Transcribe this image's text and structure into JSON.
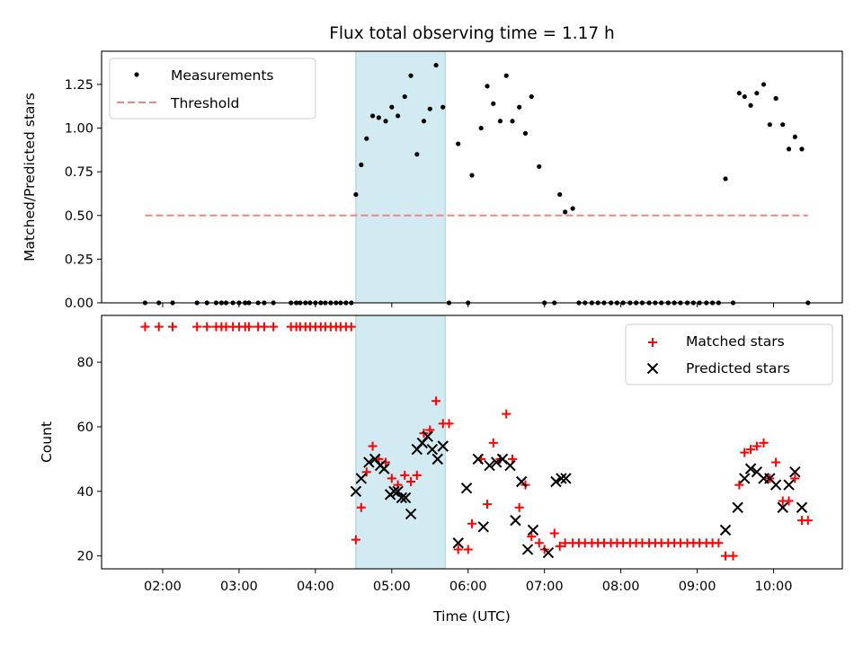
{
  "chart_data": {
    "type": "scatter",
    "title": "Flux total observing time = 1.17 h",
    "xlabel": "Time (UTC)",
    "x_tick_labels": [
      "02:00",
      "03:00",
      "04:00",
      "05:00",
      "06:00",
      "07:00",
      "08:00",
      "09:00",
      "10:00"
    ],
    "x_tick_hours": [
      2,
      3,
      4,
      5,
      6,
      7,
      8,
      9,
      10
    ],
    "xlim_hours": [
      1.2,
      10.9
    ],
    "highlight_span_hours": [
      4.53,
      5.7
    ],
    "highlight_color": "#add8e6",
    "panels": [
      {
        "ylabel": "Matched/Predicted stars",
        "ylim": [
          0,
          1.44
        ],
        "y_ticks": [
          0,
          0.25,
          0.5,
          0.75,
          1.0,
          1.25
        ],
        "y_tick_labels": [
          "0.00",
          "0.25",
          "0.50",
          "0.75",
          "1.00",
          "1.25"
        ],
        "legend_position": "top-left",
        "legend": [
          "Measurements",
          "Threshold"
        ],
        "threshold": {
          "name": "Threshold",
          "y": 0.5,
          "x_range_hours": [
            1.77,
            10.45
          ],
          "color": "#ff7f7f"
        },
        "measurements": {
          "name": "Measurements",
          "color": "#000000",
          "x": [
            1.77,
            1.95,
            2.13,
            2.45,
            2.58,
            2.7,
            2.77,
            2.83,
            2.92,
            3.0,
            3.08,
            3.13,
            3.25,
            3.33,
            3.45,
            3.68,
            3.75,
            3.8,
            3.87,
            3.93,
            4.0,
            4.07,
            4.13,
            4.2,
            4.27,
            4.33,
            4.4,
            4.47,
            4.53,
            4.6,
            4.67,
            4.75,
            4.83,
            4.92,
            5.0,
            5.08,
            5.17,
            5.25,
            5.33,
            5.42,
            5.5,
            5.58,
            5.67,
            5.75,
            5.87,
            6.0,
            6.05,
            6.17,
            6.25,
            6.33,
            6.42,
            6.5,
            6.58,
            6.67,
            6.75,
            6.83,
            6.93,
            7.0,
            7.13,
            7.2,
            7.27,
            7.37,
            7.45,
            7.53,
            7.62,
            7.7,
            7.78,
            7.87,
            7.95,
            8.03,
            8.12,
            8.2,
            8.28,
            8.37,
            8.45,
            8.53,
            8.62,
            8.7,
            8.78,
            8.87,
            8.95,
            9.03,
            9.12,
            9.2,
            9.28,
            9.37,
            9.47,
            9.55,
            9.62,
            9.7,
            9.78,
            9.87,
            9.95,
            10.03,
            10.12,
            10.2,
            10.28,
            10.37,
            10.45
          ],
          "y": [
            0,
            0,
            0,
            0,
            0,
            0,
            0,
            0,
            0,
            0,
            0,
            0,
            0,
            0,
            0,
            0,
            0,
            0,
            0,
            0,
            0,
            0,
            0,
            0,
            0,
            0,
            0,
            0,
            0.62,
            0.79,
            0.94,
            1.07,
            1.06,
            1.04,
            1.12,
            1.07,
            1.18,
            1.3,
            0.85,
            1.04,
            1.11,
            1.36,
            1.12,
            0,
            0.91,
            0,
            0.73,
            1.0,
            1.24,
            1.14,
            1.04,
            1.3,
            1.04,
            1.12,
            0.97,
            1.18,
            0.78,
            0,
            0,
            0.62,
            0.52,
            0.54,
            0,
            0,
            0,
            0,
            0,
            0,
            0,
            0,
            0,
            0,
            0,
            0,
            0,
            0,
            0,
            0,
            0,
            0,
            0,
            0,
            0,
            0,
            0,
            0.71,
            0,
            1.2,
            1.18,
            1.13,
            1.2,
            1.25,
            1.02,
            1.17,
            1.02,
            0.88,
            0.95,
            0.88,
            0
          ]
        }
      },
      {
        "ylabel": "Count",
        "ylim": [
          16,
          94.5
        ],
        "y_ticks": [
          20,
          40,
          60,
          80
        ],
        "y_tick_labels": [
          "20",
          "40",
          "60",
          "80"
        ],
        "legend_position": "top-right",
        "legend": [
          "Matched stars",
          "Predicted stars"
        ],
        "matched": {
          "name": "Matched stars",
          "color": "#ff0000",
          "x": [
            1.77,
            1.95,
            2.13,
            2.45,
            2.58,
            2.7,
            2.77,
            2.83,
            2.92,
            3.0,
            3.08,
            3.13,
            3.25,
            3.33,
            3.45,
            3.68,
            3.75,
            3.8,
            3.87,
            3.93,
            4.0,
            4.07,
            4.13,
            4.2,
            4.27,
            4.33,
            4.4,
            4.47,
            4.53,
            4.6,
            4.67,
            4.75,
            4.83,
            4.92,
            5.0,
            5.08,
            5.17,
            5.25,
            5.33,
            5.42,
            5.5,
            5.58,
            5.67,
            5.75,
            5.87,
            6.0,
            6.05,
            6.17,
            6.25,
            6.33,
            6.42,
            6.5,
            6.58,
            6.67,
            6.75,
            6.83,
            6.93,
            7.0,
            7.13,
            7.2,
            7.27,
            7.37,
            7.45,
            7.53,
            7.62,
            7.7,
            7.78,
            7.87,
            7.95,
            8.03,
            8.12,
            8.2,
            8.28,
            8.37,
            8.45,
            8.53,
            8.62,
            8.7,
            8.78,
            8.87,
            8.95,
            9.03,
            9.12,
            9.2,
            9.28,
            9.37,
            9.47,
            9.55,
            9.62,
            9.7,
            9.78,
            9.87,
            9.95,
            10.03,
            10.12,
            10.2,
            10.28,
            10.37,
            10.45
          ],
          "y": [
            91,
            91,
            91,
            91,
            91,
            91,
            91,
            91,
            91,
            91,
            91,
            91,
            91,
            91,
            91,
            91,
            91,
            91,
            91,
            91,
            91,
            91,
            91,
            91,
            91,
            91,
            91,
            91,
            25,
            35,
            46,
            54,
            50,
            49,
            44,
            42,
            45,
            43,
            45,
            58,
            59,
            68,
            61,
            61,
            22,
            22,
            30,
            50,
            36,
            55,
            50,
            64,
            50,
            35,
            42,
            26,
            24,
            22,
            27,
            23,
            24,
            24,
            24,
            24,
            24,
            24,
            24,
            24,
            24,
            24,
            24,
            24,
            24,
            24,
            24,
            24,
            24,
            24,
            24,
            24,
            24,
            24,
            24,
            24,
            24,
            20,
            20,
            42,
            52,
            53,
            54,
            55,
            44,
            49,
            37,
            37,
            44,
            31,
            31
          ]
        },
        "predicted": {
          "name": "Predicted stars",
          "color": "#000000",
          "x": [
            4.53,
            4.6,
            4.7,
            4.78,
            4.85,
            4.9,
            4.98,
            5.03,
            5.08,
            5.13,
            5.18,
            5.25,
            5.33,
            5.4,
            5.47,
            5.53,
            5.6,
            5.67,
            5.87,
            5.98,
            6.13,
            6.2,
            6.28,
            6.37,
            6.45,
            6.55,
            6.62,
            6.7,
            6.78,
            6.85,
            7.05,
            7.15,
            7.22,
            7.28,
            9.37,
            9.53,
            9.62,
            9.7,
            9.78,
            9.87,
            9.95,
            10.03,
            10.12,
            10.2,
            10.28,
            10.37
          ],
          "y": [
            40,
            44,
            49,
            50,
            48,
            47,
            39,
            40,
            40,
            38,
            38,
            33,
            53,
            55,
            57,
            53,
            50,
            54,
            24,
            41,
            50,
            29,
            48,
            49,
            50,
            48,
            31,
            43,
            22,
            28,
            21,
            43,
            44,
            44,
            28,
            35,
            44,
            47,
            46,
            44,
            44,
            42,
            35,
            42,
            46,
            35
          ]
        }
      }
    ]
  }
}
